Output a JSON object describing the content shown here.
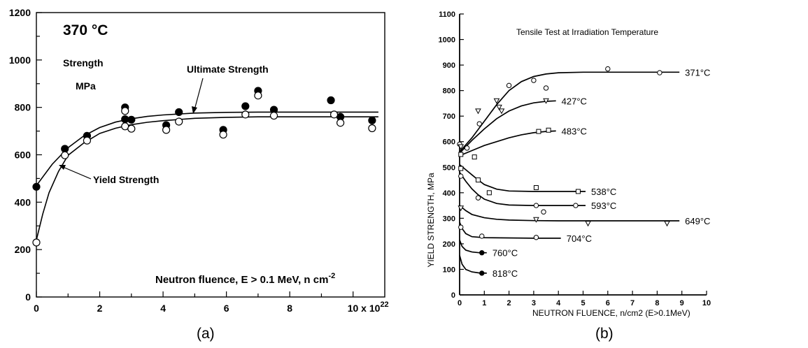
{
  "chart_data": [
    {
      "type": "scatter",
      "panel_label": "(a)",
      "title": "370 °C",
      "ylabel_lines": [
        "Strength",
        "MPa"
      ],
      "xlabel": "Neutron fluence, E > 0.1 MeV, n cm",
      "xlabel_sup": "-2",
      "x_ticks": [
        "0",
        "2",
        "4",
        "6",
        "8"
      ],
      "x_scale_label": "10 x 10",
      "x_scale_sup": "22",
      "y_ticks": [
        "0",
        "200",
        "400",
        "600",
        "800",
        "1000",
        "1200"
      ],
      "xlim": [
        0,
        11
      ],
      "ylim": [
        0,
        1200
      ],
      "grid": false,
      "series": [
        {
          "name": "Ultimate Strength",
          "marker": "filled-circle",
          "x": [
            0,
            0.9,
            1.6,
            2.8,
            2.8,
            3.0,
            4.1,
            4.5,
            5.9,
            6.6,
            7.0,
            7.5,
            9.3,
            9.6,
            10.6
          ],
          "y": [
            465,
            625,
            680,
            800,
            750,
            748,
            725,
            780,
            705,
            805,
            870,
            790,
            830,
            760,
            745
          ],
          "curve_x": [
            0,
            0.5,
            1,
            1.5,
            2,
            2.5,
            3,
            3.5,
            4,
            5,
            6,
            7,
            8,
            9,
            10,
            10.8
          ],
          "curve_y": [
            470,
            560,
            630,
            680,
            715,
            738,
            752,
            762,
            768,
            776,
            779,
            780,
            780,
            780,
            780,
            780
          ]
        },
        {
          "name": "Yield Strength",
          "marker": "open-circle",
          "x": [
            0,
            0.9,
            1.6,
            2.8,
            2.8,
            3.0,
            4.1,
            4.5,
            5.9,
            6.6,
            7.0,
            7.5,
            9.4,
            9.6,
            10.6
          ],
          "y": [
            230,
            598,
            660,
            785,
            720,
            710,
            705,
            740,
            685,
            770,
            850,
            765,
            770,
            735,
            712
          ],
          "curve_x": [
            0,
            0.2,
            0.4,
            0.7,
            1,
            1.5,
            2,
            2.5,
            3,
            3.5,
            4,
            5,
            6,
            7,
            8,
            9,
            10,
            10.8
          ],
          "curve_y": [
            240,
            350,
            440,
            530,
            598,
            650,
            690,
            712,
            727,
            737,
            744,
            754,
            758,
            760,
            760,
            760,
            760,
            760
          ]
        }
      ]
    },
    {
      "type": "line",
      "panel_label": "(b)",
      "title": "Tensile Test at Irradiation Temperature",
      "xlabel": "NEUTRON FLUENCE, n/cm2 (E>0.1MeV)",
      "ylabel": "YIELD STRENGTH, MPa",
      "x_ticks": [
        "0",
        "1",
        "2",
        "3",
        "4",
        "5",
        "6",
        "7",
        "8",
        "9",
        "10"
      ],
      "y_ticks": [
        "0",
        "100",
        "200",
        "300",
        "400",
        "500",
        "600",
        "700",
        "800",
        "900",
        "1000",
        "1100"
      ],
      "xlim": [
        0,
        10
      ],
      "ylim": [
        0,
        1100
      ],
      "grid": false,
      "series": [
        {
          "name": "371°C",
          "marker": "circle",
          "curve_x": [
            0,
            0.5,
            1,
            1.5,
            2,
            2.5,
            3,
            3.5,
            4,
            5,
            6,
            7,
            8,
            8.9
          ],
          "curve_y": [
            560,
            615,
            680,
            745,
            800,
            835,
            855,
            865,
            870,
            872,
            872,
            872,
            872,
            872
          ],
          "x": [
            0,
            0.3,
            0.8,
            2.0,
            3.0,
            3.5,
            6.0,
            8.1
          ],
          "y": [
            590,
            575,
            670,
            820,
            840,
            810,
            885,
            870
          ]
        },
        {
          "name": "427°C",
          "marker": "triangle",
          "curve_x": [
            0,
            0.5,
            1,
            1.5,
            2,
            2.5,
            3,
            3.5,
            3.9
          ],
          "curve_y": [
            555,
            605,
            650,
            690,
            720,
            740,
            752,
            758,
            760
          ],
          "x": [
            0.05,
            0.75,
            1.5,
            1.6,
            1.7,
            3.5
          ],
          "y": [
            580,
            720,
            760,
            735,
            720,
            760
          ]
        },
        {
          "name": "483°C",
          "marker": "square",
          "curve_x": [
            0,
            0.5,
            1,
            1.5,
            2,
            2.5,
            3,
            3.5,
            3.9
          ],
          "curve_y": [
            545,
            565,
            585,
            600,
            615,
            627,
            635,
            640,
            642
          ],
          "x": [
            0.05,
            0.6,
            3.2,
            3.6
          ],
          "y": [
            550,
            540,
            640,
            645
          ]
        },
        {
          "name": "538°C",
          "marker": "square",
          "curve_x": [
            0,
            0.25,
            0.5,
            0.75,
            1,
            1.5,
            2,
            3,
            4,
            5.1
          ],
          "curve_y": [
            510,
            490,
            470,
            450,
            432,
            414,
            407,
            405,
            405,
            405
          ],
          "x": [
            0.05,
            0.75,
            1.2,
            3.1,
            4.8
          ],
          "y": [
            495,
            450,
            400,
            420,
            405
          ]
        },
        {
          "name": "593°C",
          "marker": "circle",
          "curve_x": [
            0,
            0.25,
            0.5,
            0.75,
            1,
            1.5,
            2,
            3,
            4,
            5.1
          ],
          "curve_y": [
            480,
            445,
            415,
            392,
            375,
            358,
            352,
            350,
            350,
            350
          ],
          "x": [
            0.05,
            0.75,
            3.1,
            3.4,
            4.7
          ],
          "y": [
            465,
            380,
            350,
            325,
            350
          ]
        },
        {
          "name": "649°C",
          "marker": "triangle",
          "curve_x": [
            0,
            0.25,
            0.5,
            1,
            1.5,
            2,
            3,
            4,
            5,
            6,
            7,
            8,
            8.9
          ],
          "curve_y": [
            350,
            330,
            315,
            302,
            296,
            293,
            291,
            290,
            290,
            290,
            290,
            290,
            290
          ],
          "x": [
            0.05,
            3.1,
            5.2,
            8.4
          ],
          "y": [
            340,
            295,
            280,
            280
          ]
        },
        {
          "name": "704°C",
          "marker": "circle",
          "curve_x": [
            0,
            0.1,
            0.25,
            0.5,
            1,
            2,
            3,
            4.1
          ],
          "curve_y": [
            285,
            260,
            240,
            228,
            224,
            223,
            222,
            222
          ],
          "x": [
            0.05,
            0.9,
            3.1
          ],
          "y": [
            265,
            230,
            225
          ]
        },
        {
          "name": "760°C",
          "marker": "filled-circle",
          "curve_x": [
            0,
            0.1,
            0.25,
            0.5,
            0.8,
            1.1
          ],
          "curve_y": [
            215,
            190,
            175,
            168,
            165,
            165
          ],
          "x": [
            0.9
          ],
          "y": [
            165
          ]
        },
        {
          "name": "818°C",
          "marker": "filled-circle",
          "curve_x": [
            0,
            0.1,
            0.25,
            0.5,
            0.8,
            1.1
          ],
          "curve_y": [
            155,
            120,
            100,
            90,
            86,
            85
          ],
          "x": [
            0.9
          ],
          "y": [
            85
          ]
        }
      ]
    }
  ]
}
